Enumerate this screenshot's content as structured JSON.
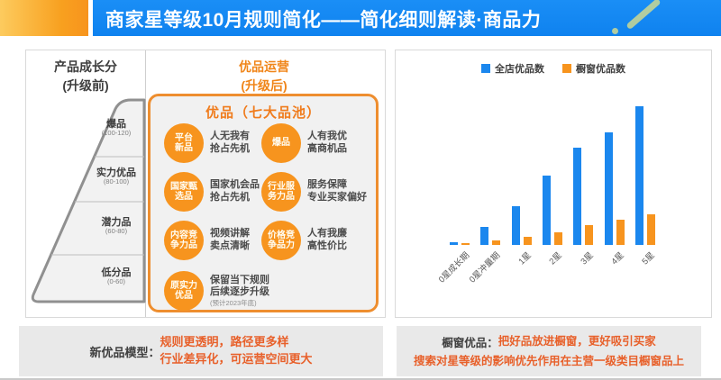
{
  "header": {
    "title": "商家星等级10月规则简化——简化细则解读·商品力"
  },
  "left_panel": {
    "before_title_line1": "产品成长分",
    "before_title_line2": "(升级前)",
    "tiers": [
      {
        "name": "爆品",
        "range": "(100-120)"
      },
      {
        "name": "实力优品",
        "range": "(80-100)"
      },
      {
        "name": "潜力品",
        "range": "(60-80)"
      },
      {
        "name": "低分品",
        "range": "(0-60)"
      }
    ],
    "after_title_line1": "优品运营",
    "after_title_line2": "(升级后)",
    "pool_box_title": "优品（七大品池）",
    "pools": [
      {
        "badge_line1": "平台",
        "badge_line2": "新品",
        "desc_line1": "人无我有",
        "desc_line2": "抢占先机"
      },
      {
        "badge_line1": "爆品",
        "badge_line2": "",
        "desc_line1": "人有我优",
        "desc_line2": "高商机品"
      },
      {
        "badge_line1": "国家甄",
        "badge_line2": "选品",
        "desc_line1": "国家机会品",
        "desc_line2": "抢占先机"
      },
      {
        "badge_line1": "行业服",
        "badge_line2": "务力品",
        "desc_line1": "服务保障",
        "desc_line2": "专业买家偏好"
      },
      {
        "badge_line1": "内容竞",
        "badge_line2": "争力品",
        "desc_line1": "视频讲解",
        "desc_line2": "卖点清晰"
      },
      {
        "badge_line1": "价格竞",
        "badge_line2": "争品力",
        "desc_line1": "人有我廉",
        "desc_line2": "高性价比"
      },
      {
        "badge_line1": "原实力",
        "badge_line2": "优品",
        "desc_line1": "保留当下规则",
        "desc_line2": "后续逐步升级",
        "desc_line3": "(预计2023年底)"
      }
    ],
    "footnote_label": "新优品模型：",
    "footnote_line1": "规则更透明，路径更多样",
    "footnote_line2": "行业差异化，可运营空间更大"
  },
  "chart_panel": {
    "footnote_label": "橱窗优品：",
    "footnote_line1": "把好品放进橱窗，更好吸引买家",
    "footnote_line2": "搜索对星等级的影响优先作用在主营一级类目橱窗品上"
  },
  "chart_data": {
    "type": "bar",
    "title": "",
    "xlabel": "",
    "ylabel": "",
    "categories": [
      "0星成长期",
      "0星冲量期",
      "1星",
      "2星",
      "3星",
      "4星",
      "5星"
    ],
    "series": [
      {
        "name": "全店优品数",
        "color": "#1b87ee",
        "values": [
          2,
          13,
          28,
          50,
          70,
          81,
          100
        ]
      },
      {
        "name": "橱窗优品数",
        "color": "#f7941e",
        "values": [
          1,
          3,
          6,
          9,
          14,
          18,
          22
        ]
      }
    ],
    "ylim": [
      0,
      105
    ],
    "grid": false,
    "legend_position": "top",
    "value_unit": "relative index (5星全店优品数=100)"
  },
  "colors": {
    "banner_blue": "#1287f2",
    "brand_orange": "#f7941e",
    "note_orange": "#e8602a",
    "panel_gray": "#f1f1f1",
    "note_gray": "#e9e9e9"
  }
}
